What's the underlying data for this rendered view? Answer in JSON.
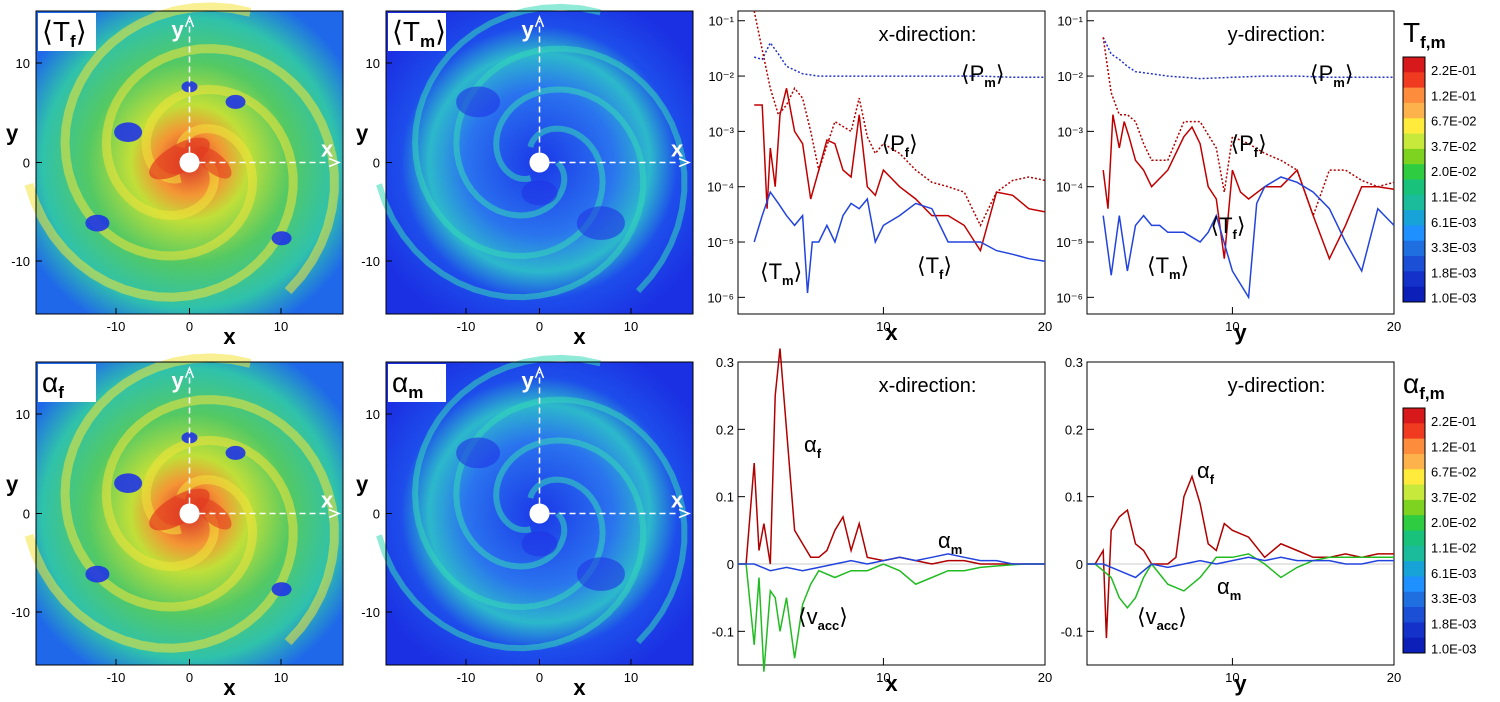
{
  "colorbar": {
    "top_title_main": "T",
    "top_title_sub": "f,m",
    "bottom_title_main": "α",
    "bottom_title_sub": "f,m",
    "ticks": [
      "2.2E-01",
      "1.2E-01",
      "6.7E-02",
      "3.7E-02",
      "2.0E-02",
      "1.1E-02",
      "6.1E-03",
      "3.3E-03",
      "1.8E-03",
      "1.0E-03"
    ],
    "colors": [
      "#d7191c",
      "#f03b20",
      "#fd8d3c",
      "#feb24c",
      "#ffeb3b",
      "#c7e93b",
      "#7ed321",
      "#2ecc40",
      "#19c27a",
      "#1abc9c",
      "#17a2d8",
      "#1e90ff",
      "#1f6fe0",
      "#1b4fd6",
      "#1432c9",
      "#0c1fb8"
    ]
  },
  "maps": [
    {
      "id": "Tf",
      "label": "⟨T",
      "sub": "f",
      "close": "⟩",
      "xlabel": "x",
      "ylabel": "y",
      "ticks_x": [
        "-10",
        "0",
        "10"
      ],
      "ticks_y": [
        "10",
        "0",
        "-10"
      ],
      "axis_x": "x",
      "axis_y": "y",
      "fill": "#5fcf60"
    },
    {
      "id": "Tm",
      "label": "⟨T",
      "sub": "m",
      "close": "⟩",
      "xlabel": "x",
      "ylabel": "y",
      "ticks_x": [
        "-10",
        "0",
        "10"
      ],
      "ticks_y": [
        "10",
        "0",
        "-10"
      ],
      "axis_x": "x",
      "axis_y": "y",
      "fill": "#1f3ff0"
    },
    {
      "id": "af",
      "label": "α",
      "sub": "f",
      "close": "",
      "xlabel": "x",
      "ylabel": "y",
      "ticks_x": [
        "-10",
        "0",
        "10"
      ],
      "ticks_y": [
        "10",
        "0",
        "-10"
      ],
      "axis_x": "x",
      "axis_y": "y",
      "fill": "#5fcf60"
    },
    {
      "id": "am",
      "label": "α",
      "sub": "m",
      "close": "",
      "xlabel": "x",
      "ylabel": "y",
      "ticks_x": [
        "-10",
        "0",
        "10"
      ],
      "ticks_y": [
        "10",
        "0",
        "-10"
      ],
      "axis_x": "x",
      "axis_y": "y",
      "fill": "#1f3ff0"
    }
  ],
  "chart_data": [
    {
      "type": "line",
      "title": "x-direction:",
      "xlabel": "x",
      "yscale": "log",
      "xlim": [
        1,
        20
      ],
      "ylim": [
        5e-07,
        0.15
      ],
      "xticks": [
        10,
        20
      ],
      "yticks": [
        "10⁻¹",
        "10⁻²",
        "10⁻³",
        "10⁻⁴",
        "10⁻⁵",
        "10⁻⁶"
      ],
      "labels": {
        "Pm": "⟨P",
        "Pm_sub": "m",
        "Pf": "⟨P",
        "Pf_sub": "f",
        "Tm": "⟨T",
        "Tm_sub": "m",
        "Tf": "⟨T",
        "Tf_sub": "f"
      },
      "series": [
        {
          "name": "⟨Pm⟩",
          "color": "#2233cc",
          "dash": "dot",
          "x": [
            2,
            2.5,
            3,
            3.5,
            4,
            5,
            6,
            8,
            10,
            12,
            14,
            16,
            18,
            20
          ],
          "y": [
            0.022,
            0.02,
            0.04,
            0.025,
            0.015,
            0.011,
            0.01,
            0.01,
            0.01,
            0.01,
            0.01,
            0.01,
            0.0095,
            0.0095
          ]
        },
        {
          "name": "⟨Pf⟩",
          "color": "#b00000",
          "dash": "dot",
          "x": [
            2,
            2.5,
            3,
            3.5,
            4,
            4.5,
            5,
            5.5,
            6,
            7,
            8,
            8.5,
            9,
            9.5,
            10,
            11,
            12,
            13,
            14,
            15,
            16,
            17,
            18,
            19,
            20
          ],
          "y": [
            0.15,
            0.03,
            0.006,
            0.002,
            0.003,
            0.006,
            0.004,
            0.001,
            0.0002,
            0.0015,
            0.001,
            0.004,
            0.0008,
            0.0004,
            0.0006,
            0.0004,
            0.0002,
            0.00012,
            0.0001,
            8e-05,
            2e-05,
            8e-05,
            0.00013,
            0.00015,
            0.00013
          ]
        },
        {
          "name": "⟨Tf⟩",
          "color": "#c00000",
          "dash": "solid",
          "x": [
            2,
            2.5,
            2.8,
            3,
            3.3,
            3.6,
            4,
            4.5,
            5,
            5.5,
            6,
            6.5,
            7,
            7.5,
            8,
            8.5,
            9,
            9.5,
            10,
            11,
            12,
            13,
            14,
            15,
            16,
            17,
            18,
            19,
            20
          ],
          "y": [
            0.003,
            0.003,
            4e-05,
            0.0005,
            0.0001,
            0.002,
            0.006,
            0.001,
            0.0006,
            6e-05,
            0.0002,
            0.0007,
            0.0006,
            0.0002,
            0.00015,
            0.002,
            0.0001,
            7e-05,
            0.0002,
            0.0001,
            6e-05,
            3e-05,
            3e-05,
            2e-05,
            7e-06,
            8e-05,
            7e-05,
            4e-05,
            3.5e-05
          ]
        },
        {
          "name": "⟨Tm⟩",
          "color": "#2244dd",
          "dash": "solid",
          "x": [
            2,
            2.5,
            3,
            3.5,
            4,
            4.5,
            5,
            5.3,
            5.6,
            6,
            6.5,
            7,
            7.5,
            8,
            8.5,
            9,
            9.5,
            10,
            11,
            12,
            13,
            14,
            15,
            16,
            17,
            18,
            19,
            20
          ],
          "y": [
            1e-05,
            3e-05,
            8e-05,
            5e-05,
            3e-05,
            2e-05,
            3e-05,
            1.2e-06,
            1e-05,
            1e-05,
            2e-05,
            1e-05,
            3e-05,
            5e-05,
            4e-05,
            6e-05,
            1e-05,
            2e-05,
            3e-05,
            5e-05,
            4e-05,
            1e-05,
            1e-05,
            1e-05,
            7e-06,
            6e-06,
            5e-06,
            4.5e-06
          ]
        }
      ]
    },
    {
      "type": "line",
      "title": "y-direction:",
      "xlabel": "y",
      "yscale": "log",
      "xlim": [
        1,
        20
      ],
      "ylim": [
        5e-07,
        0.15
      ],
      "xticks": [
        10,
        20
      ],
      "yticks": [
        "10⁻¹",
        "10⁻²",
        "10⁻³",
        "10⁻⁴",
        "10⁻⁵",
        "10⁻⁶"
      ],
      "labels": {
        "Pm": "⟨P",
        "Pm_sub": "m",
        "Pf": "⟨P",
        "Pf_sub": "f",
        "Tm": "⟨T",
        "Tm_sub": "m",
        "Tf": "⟨T",
        "Tf_sub": "f"
      },
      "series": [
        {
          "name": "⟨Pm⟩",
          "color": "#2233cc",
          "dash": "dot",
          "x": [
            2,
            2.5,
            3,
            3.5,
            4,
            5,
            6,
            7,
            8,
            10,
            12,
            14,
            16,
            18,
            20
          ],
          "y": [
            0.05,
            0.025,
            0.02,
            0.015,
            0.012,
            0.011,
            0.01,
            0.0095,
            0.009,
            0.0095,
            0.01,
            0.01,
            0.0095,
            0.0095,
            0.0095
          ]
        },
        {
          "name": "⟨Pf⟩",
          "color": "#b00000",
          "dash": "dot",
          "x": [
            2,
            2.5,
            3,
            3.5,
            4,
            4.5,
            5,
            6,
            7,
            8,
            9,
            9.5,
            10,
            11,
            12,
            13,
            14,
            15,
            16,
            17,
            18,
            19,
            20
          ],
          "y": [
            0.05,
            0.005,
            0.002,
            0.002,
            0.0015,
            0.0006,
            0.0003,
            0.0003,
            0.0015,
            0.0015,
            0.0005,
            8e-05,
            0.0008,
            0.0006,
            0.0004,
            0.0003,
            0.0002,
            3e-05,
            0.0002,
            0.0002,
            0.00013,
            0.0001,
            0.00012
          ]
        },
        {
          "name": "⟨Tf⟩",
          "color": "#c00000",
          "dash": "solid",
          "x": [
            2,
            2.3,
            2.6,
            3,
            3.3,
            3.6,
            4,
            4.5,
            5,
            6,
            7,
            7.5,
            8,
            8.5,
            9,
            9.5,
            10,
            10.5,
            11,
            12,
            13,
            14,
            15,
            16,
            17,
            18,
            19,
            20
          ],
          "y": [
            0.0002,
            4e-05,
            0.002,
            0.0005,
            0.0015,
            0.0008,
            0.0003,
            0.0002,
            0.0001,
            0.0002,
            0.0008,
            0.0012,
            0.0006,
            0.0001,
            6e-05,
            5e-06,
            0.0002,
            8e-05,
            6e-05,
            0.0001,
            0.0001,
            0.0002,
            3e-05,
            5e-06,
            2e-05,
            0.0001,
            0.0001,
            9e-05
          ]
        },
        {
          "name": "⟨Tm⟩",
          "color": "#2244dd",
          "dash": "solid",
          "x": [
            2,
            2.5,
            3,
            3.5,
            4,
            4.5,
            5,
            5.5,
            6,
            7,
            8,
            8.5,
            9,
            10,
            11,
            11.5,
            12,
            13,
            14,
            15,
            16,
            17,
            18,
            19,
            20
          ],
          "y": [
            3e-05,
            2.5e-06,
            3e-05,
            3e-06,
            2e-05,
            3e-05,
            2e-05,
            2e-05,
            1.5e-05,
            1.5e-05,
            1e-05,
            1.5e-05,
            3e-05,
            3e-06,
            1e-06,
            5e-05,
            0.0001,
            0.00015,
            0.00012,
            8e-05,
            4e-05,
            1e-05,
            3e-06,
            4e-05,
            2e-05
          ]
        }
      ]
    },
    {
      "type": "line",
      "title": "x-direction:",
      "xlabel": "x",
      "yscale": "linear",
      "xlim": [
        1,
        20
      ],
      "ylim": [
        -0.15,
        0.3
      ],
      "xticks": [
        10,
        20
      ],
      "yticks": [
        "0.3",
        "0.2",
        "0.1",
        "0",
        "-0.1"
      ],
      "labels": {
        "af": "α",
        "af_sub": "f",
        "am": "α",
        "am_sub": "m",
        "v": "⟨v",
        "v_sub": "acc"
      },
      "series": [
        {
          "name": "αf",
          "color": "#b00000",
          "x": [
            1,
            1.5,
            2,
            2.3,
            2.6,
            3,
            3.3,
            3.6,
            4,
            4.5,
            5,
            5.5,
            6,
            6.5,
            7,
            7.5,
            8,
            8.5,
            9,
            10,
            11,
            12,
            13,
            14,
            15,
            16,
            17,
            18,
            19,
            20
          ],
          "y": [
            0,
            0,
            0.15,
            0.02,
            0.06,
            0.0,
            0.25,
            0.32,
            0.2,
            0.05,
            0.03,
            0.01,
            0.01,
            0.02,
            0.05,
            0.07,
            0.02,
            0.06,
            0.01,
            0.005,
            0.01,
            0.005,
            0.0,
            0.005,
            0.005,
            0.0,
            0.0,
            0.0,
            0.0,
            0.0
          ]
        },
        {
          "name": "⟨vacc⟩",
          "color": "#22bb22",
          "x": [
            1,
            1.5,
            2,
            2.3,
            2.6,
            3,
            3.3,
            3.6,
            4,
            4.5,
            5,
            5.5,
            6,
            7,
            8,
            9,
            10,
            11,
            12,
            13,
            14,
            15,
            16,
            17,
            18,
            19,
            20
          ],
          "y": [
            0,
            0,
            -0.12,
            -0.02,
            -0.16,
            -0.04,
            -0.05,
            -0.1,
            -0.05,
            -0.14,
            -0.06,
            -0.03,
            -0.01,
            -0.02,
            -0.01,
            -0.01,
            0.0,
            -0.01,
            -0.03,
            -0.02,
            -0.01,
            -0.01,
            -0.005,
            -0.003,
            -0.001,
            0.0,
            0.0
          ]
        },
        {
          "name": "αm",
          "color": "#2244dd",
          "x": [
            1,
            2,
            3,
            4,
            5,
            6,
            7,
            8,
            9,
            10,
            11,
            12,
            13,
            14,
            15,
            16,
            17,
            18,
            19,
            20
          ],
          "y": [
            0,
            0.0,
            -0.01,
            -0.005,
            -0.01,
            -0.005,
            0.0,
            0.005,
            0.0,
            0.005,
            0.01,
            0.005,
            0.01,
            0.015,
            0.01,
            0.005,
            0.005,
            0.0,
            0.0,
            0.0
          ]
        }
      ]
    },
    {
      "type": "line",
      "title": "y-direction:",
      "xlabel": "y",
      "yscale": "linear",
      "xlim": [
        1,
        20
      ],
      "ylim": [
        -0.15,
        0.3
      ],
      "xticks": [
        10,
        20
      ],
      "yticks": [
        "0.3",
        "0.2",
        "0.1",
        "0",
        "-0.1"
      ],
      "labels": {
        "af": "α",
        "af_sub": "f",
        "am": "α",
        "am_sub": "m",
        "v": "⟨v",
        "v_sub": "acc"
      },
      "series": [
        {
          "name": "αf",
          "color": "#b00000",
          "x": [
            1,
            1.5,
            2,
            2.2,
            2.5,
            3,
            3.5,
            4,
            4.5,
            5,
            6,
            6.5,
            7,
            7.5,
            8,
            8.5,
            9,
            9.5,
            10,
            11,
            12,
            13,
            14,
            15,
            16,
            17,
            18,
            19,
            20
          ],
          "y": [
            0,
            0,
            0.02,
            -0.11,
            0.05,
            0.07,
            0.08,
            0.03,
            0.02,
            0.0,
            0.0,
            0.01,
            0.1,
            0.13,
            0.09,
            0.03,
            0.02,
            0.06,
            0.05,
            0.04,
            0.01,
            0.03,
            0.02,
            0.01,
            0.01,
            0.015,
            0.01,
            0.015,
            0.015
          ]
        },
        {
          "name": "⟨vacc⟩",
          "color": "#22bb22",
          "x": [
            1,
            1.5,
            2,
            2.5,
            3,
            3.5,
            4,
            4.5,
            5,
            6,
            7,
            8,
            9,
            10,
            11,
            12,
            13,
            14,
            15,
            16,
            17,
            18,
            19,
            20
          ],
          "y": [
            0,
            0,
            -0.01,
            -0.02,
            -0.05,
            -0.065,
            -0.05,
            -0.02,
            0.0,
            -0.03,
            -0.04,
            -0.02,
            0.01,
            0.01,
            0.015,
            0.0,
            -0.02,
            -0.005,
            0.005,
            0.01,
            0.01,
            0.01,
            0.01,
            0.01
          ]
        },
        {
          "name": "αm",
          "color": "#2244dd",
          "x": [
            1,
            2,
            3,
            4,
            5,
            6,
            7,
            8,
            9,
            10,
            11,
            12,
            13,
            14,
            15,
            16,
            17,
            18,
            19,
            20
          ],
          "y": [
            0,
            0.0,
            -0.01,
            -0.02,
            0.0,
            -0.005,
            0.0,
            0.005,
            0.0,
            0.005,
            0.01,
            0.005,
            0.01,
            0.005,
            0.005,
            0.005,
            0.0,
            0.0,
            0.005,
            0.005
          ]
        }
      ]
    }
  ]
}
